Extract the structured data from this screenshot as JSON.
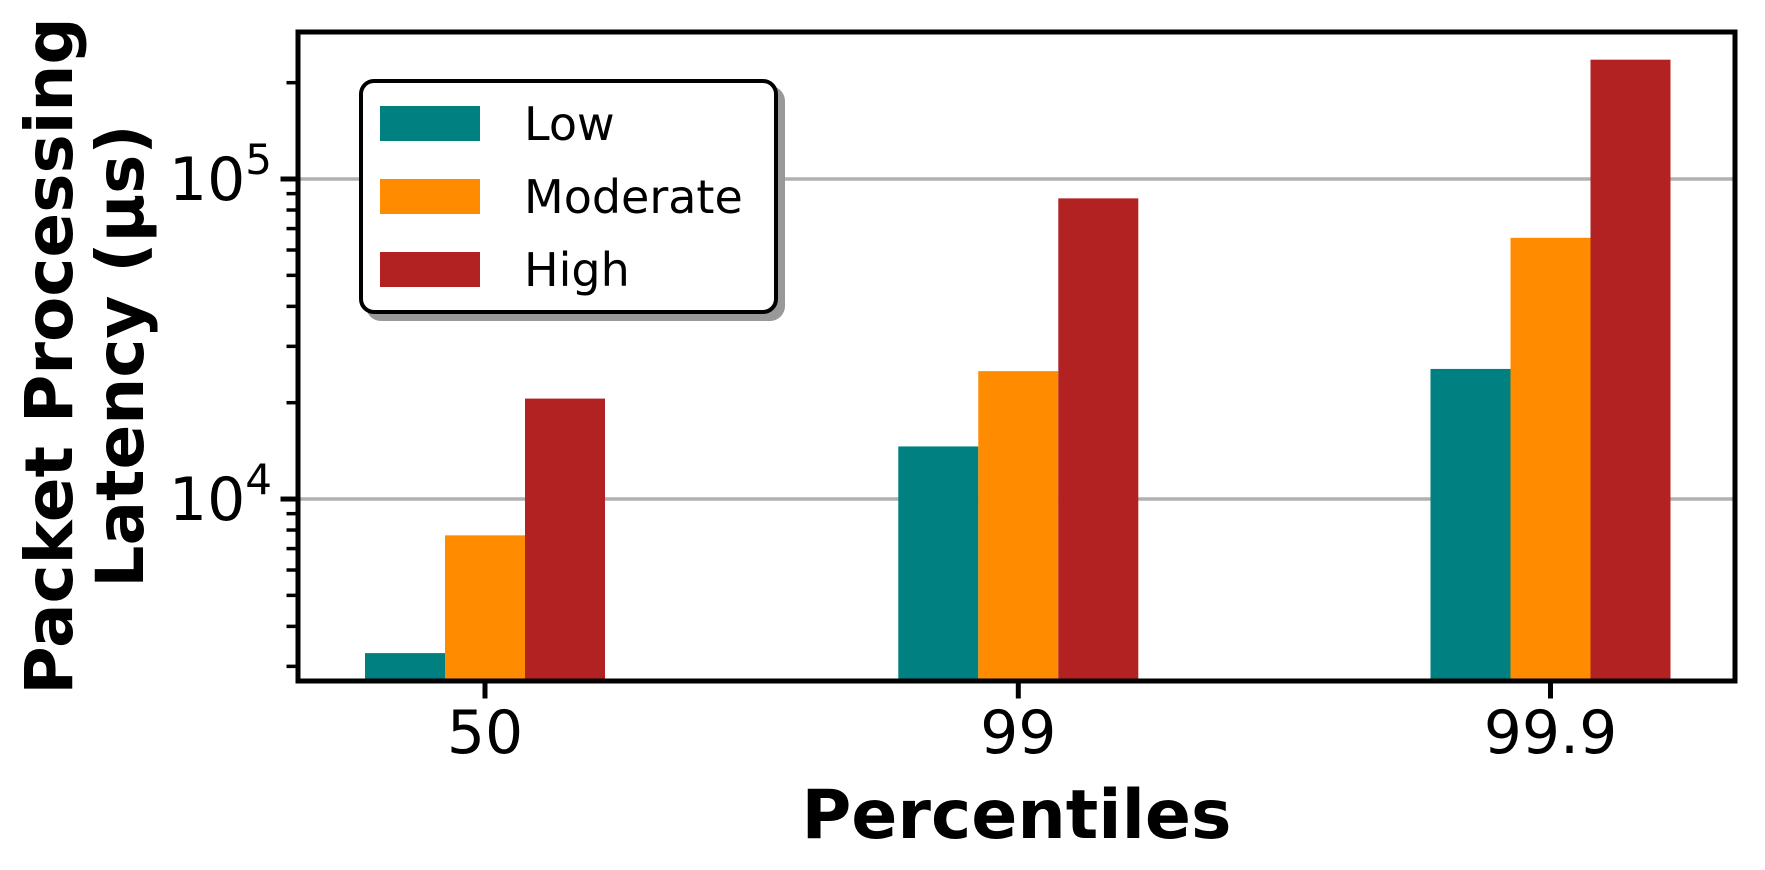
{
  "figure": {
    "xlabel": "Percentiles",
    "ylabel_line1": "Packet Processing",
    "ylabel_line2": "Latency (μs)"
  },
  "legend": {
    "items": [
      {
        "label": "Low",
        "color": "#008080"
      },
      {
        "label": "Moderate",
        "color": "#FF8C00"
      },
      {
        "label": "High",
        "color": "#B22222"
      }
    ]
  },
  "chart_data": {
    "type": "bar",
    "title": "",
    "xlabel": "Percentiles",
    "ylabel": "Packet Processing Latency (μs)",
    "yscale": "log",
    "categories": [
      "50",
      "99",
      "99.9"
    ],
    "series": [
      {
        "name": "Low",
        "color": "#008080",
        "values": [
          3300,
          14600,
          25500
        ]
      },
      {
        "name": "Moderate",
        "color": "#FF8C00",
        "values": [
          7700,
          25100,
          65500
        ]
      },
      {
        "name": "High",
        "color": "#B22222",
        "values": [
          20600,
          87000,
          236000
        ]
      }
    ],
    "y_ticks": [
      {
        "value": 10000,
        "base": "10",
        "exponent": "4"
      },
      {
        "value": 100000,
        "base": "10",
        "exponent": "5"
      }
    ],
    "ylim": [
      2700,
      288000
    ],
    "grid": "horizontal-major",
    "grid_color": "#b0b0b0",
    "legend_position": "upper-left",
    "legend_shadow": true
  }
}
